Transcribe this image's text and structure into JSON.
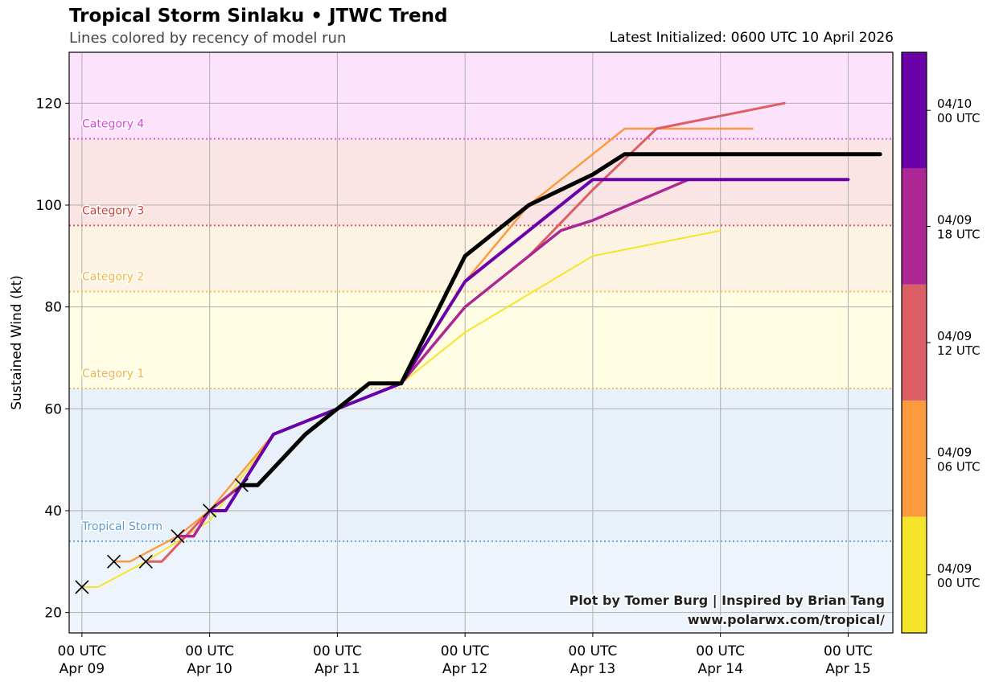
{
  "header": {
    "title": "Tropical Storm Sinlaku • JTWC Trend",
    "subtitle": "Lines colored by recency of model run",
    "latest": "Latest Initialized: 0600 UTC 10 April 2026"
  },
  "credit": {
    "line1": "Plot by Tomer Burg | Inspired by Brian Tang",
    "line2": "www.polarwx.com/tropical/"
  },
  "chart_data": {
    "type": "line",
    "title": "Tropical Storm Sinlaku • JTWC Trend",
    "subtitle": "Lines colored by recency of model run",
    "ylabel": "Sustained Wind (kt)",
    "xlabel": "",
    "ylim": [
      16,
      130
    ],
    "xlim": [
      -0.1,
      6.35
    ],
    "x_ticks": [
      0,
      1,
      2,
      3,
      4,
      5,
      6
    ],
    "x_tick_labels": [
      {
        "top": "00 UTC",
        "bottom": "Apr 09"
      },
      {
        "top": "00 UTC",
        "bottom": "Apr 10"
      },
      {
        "top": "00 UTC",
        "bottom": "Apr 11"
      },
      {
        "top": "00 UTC",
        "bottom": "Apr 12"
      },
      {
        "top": "00 UTC",
        "bottom": "Apr 13"
      },
      {
        "top": "00 UTC",
        "bottom": "Apr 14"
      },
      {
        "top": "00 UTC",
        "bottom": "Apr 15"
      }
    ],
    "y_ticks": [
      20,
      40,
      60,
      80,
      100,
      120
    ],
    "grid": true,
    "categories": [
      {
        "label": "Tropical Storm",
        "threshold": 34,
        "color": "#5b9bd5",
        "band_color": "#e8f0fa"
      },
      {
        "label": "Category 1",
        "threshold": 64,
        "color": "#f0b840",
        "band_color": "#fffde4"
      },
      {
        "label": "Category 2",
        "threshold": 83,
        "color": "#f5b63c",
        "band_color": "#fdf3e2"
      },
      {
        "label": "Category 3",
        "threshold": 96,
        "color": "#d8403a",
        "band_color": "#fbe5e4"
      },
      {
        "label": "Category 4",
        "threshold": 113,
        "color": "#e042e0",
        "band_color": "#fce3fb"
      }
    ],
    "below_ts_band_color": "#eef4fb",
    "series": [
      {
        "run": "04/09 00 UTC",
        "color": "#f5e52a",
        "width": 2,
        "x": [
          0,
          0.125,
          0.5,
          1.0,
          1.5,
          2.0,
          2.5,
          3.0,
          4.0,
          5.0
        ],
        "y": [
          25,
          25,
          30,
          38,
          55,
          60,
          65,
          75,
          90,
          95
        ]
      },
      {
        "run": "04/09 06 UTC",
        "color": "#fb9b3e",
        "width": 2.5,
        "x": [
          0.25,
          0.375,
          0.75,
          1.0,
          1.5,
          2.0,
          2.5,
          3.0,
          3.5,
          4.0,
          4.25,
          5.0,
          5.25
        ],
        "y": [
          30,
          30,
          35,
          40,
          55,
          60,
          65,
          85,
          100,
          110,
          115,
          115,
          115
        ]
      },
      {
        "run": "04/09 12 UTC",
        "color": "#dc5f66",
        "width": 3,
        "x": [
          0.5,
          0.625,
          1.0,
          1.25,
          1.5,
          2.0,
          2.5,
          3.0,
          3.5,
          4.0,
          4.5,
          5.5
        ],
        "y": [
          30,
          30,
          40,
          45,
          55,
          60,
          65,
          80,
          90,
          103,
          115,
          120
        ]
      },
      {
        "run": "04/09 18 UTC",
        "color": "#ac2794",
        "width": 3.5,
        "x": [
          0.75,
          0.875,
          1.0,
          1.25,
          1.5,
          2.0,
          2.5,
          3.0,
          3.75,
          4.0,
          4.75,
          5.0,
          6.0
        ],
        "y": [
          35,
          35,
          40,
          45,
          55,
          60,
          65,
          80,
          95,
          97,
          105,
          105,
          105
        ]
      },
      {
        "run": "04/10 00 UTC",
        "color": "#6a00a8",
        "width": 4,
        "x": [
          1.0,
          1.125,
          1.25,
          1.5,
          2.0,
          2.5,
          3.0,
          3.5,
          4.0,
          4.5,
          5.0,
          6.0
        ],
        "y": [
          40,
          40,
          45,
          55,
          60,
          65,
          85,
          95,
          105,
          105,
          105,
          105
        ]
      },
      {
        "run": "04/10 06 UTC (latest)",
        "color": "#000000",
        "width": 5,
        "x": [
          1.25,
          1.375,
          1.75,
          2.0,
          2.25,
          2.5,
          3.0,
          3.25,
          3.5,
          4.0,
          4.25,
          5.0,
          6.25
        ],
        "y": [
          45,
          45,
          55,
          60,
          65,
          65,
          90,
          95,
          100,
          106,
          110,
          110,
          110
        ]
      }
    ],
    "observed": {
      "marker": "x",
      "x": [
        0,
        0.25,
        0.5,
        0.75,
        1.0,
        1.25
      ],
      "y": [
        25,
        30,
        30,
        35,
        40,
        45
      ]
    },
    "colorbar": {
      "segments": [
        {
          "color": "#f5e52a",
          "label_top": "04/09",
          "label_bottom": "00 UTC"
        },
        {
          "color": "#fb9b3e",
          "label_top": "04/09",
          "label_bottom": "06 UTC"
        },
        {
          "color": "#dc5f66",
          "label_top": "04/09",
          "label_bottom": "12 UTC"
        },
        {
          "color": "#ac2794",
          "label_top": "04/09",
          "label_bottom": "18 UTC"
        },
        {
          "color": "#6a00a8",
          "label_top": "04/10",
          "label_bottom": "00 UTC"
        }
      ]
    }
  }
}
